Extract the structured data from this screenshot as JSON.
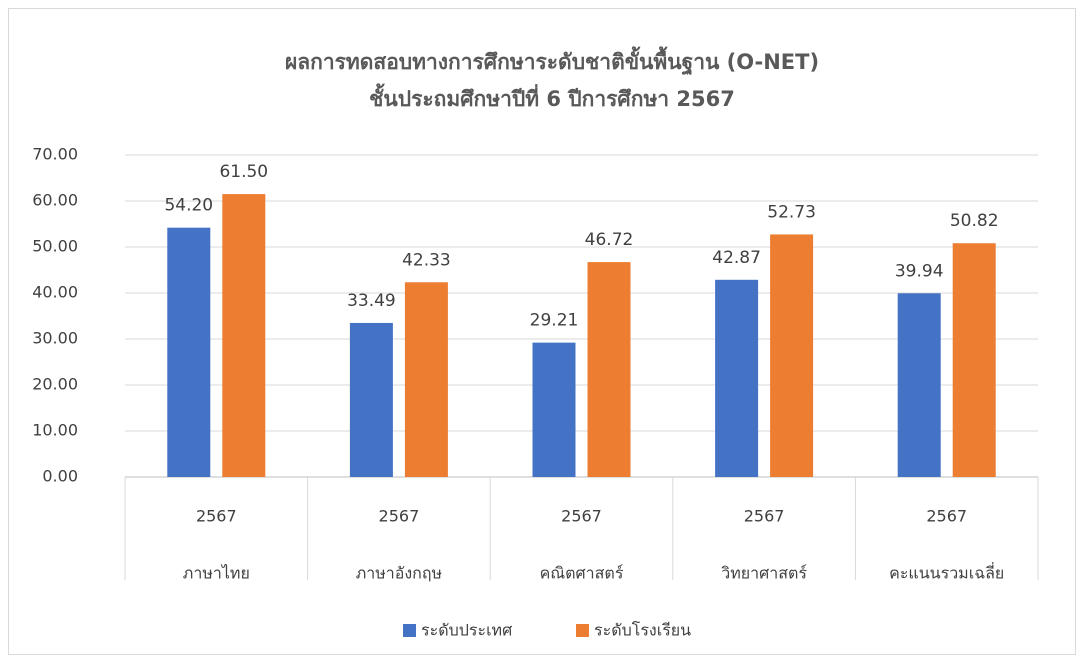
{
  "chart_data": {
    "type": "bar",
    "title": "ผลการทดสอบทางการศึกษาระดับชาติขั้นพื้นฐาน (O-NET)",
    "subtitle": "ชั้นประถมศึกษาปีที่ 6 ปีการศึกษา 2567",
    "categories": [
      "ภาษาไทย",
      "ภาษาอังกฤษ",
      "คณิตศาสตร์",
      "วิทยาศาสตร์",
      "คะแนนรวมเฉลี่ย"
    ],
    "category_groups": [
      "2567",
      "2567",
      "2567",
      "2567",
      "2567"
    ],
    "series": [
      {
        "name": "ระดับประเทศ",
        "color": "#4472c4",
        "values": [
          54.2,
          33.49,
          29.21,
          42.87,
          39.94
        ],
        "value_labels": [
          "54.20",
          "33.49",
          "29.21",
          "42.87",
          "39.94"
        ]
      },
      {
        "name": "ระดับโรงเรียน",
        "color": "#ed7d31",
        "values": [
          61.5,
          42.33,
          46.72,
          52.73,
          50.82
        ],
        "value_labels": [
          "61.50",
          "42.33",
          "46.72",
          "52.73",
          "50.82"
        ]
      }
    ],
    "ylim": [
      0,
      70
    ],
    "yticks": [
      {
        "value": 0,
        "label": "0.00"
      },
      {
        "value": 10,
        "label": "10.00"
      },
      {
        "value": 20,
        "label": "20.00"
      },
      {
        "value": 30,
        "label": "30.00"
      },
      {
        "value": 40,
        "label": "40.00"
      },
      {
        "value": 50,
        "label": "50.00"
      },
      {
        "value": 60,
        "label": "60.00"
      },
      {
        "value": 70,
        "label": "70.00"
      }
    ],
    "grid": true,
    "legend": "bottom"
  }
}
